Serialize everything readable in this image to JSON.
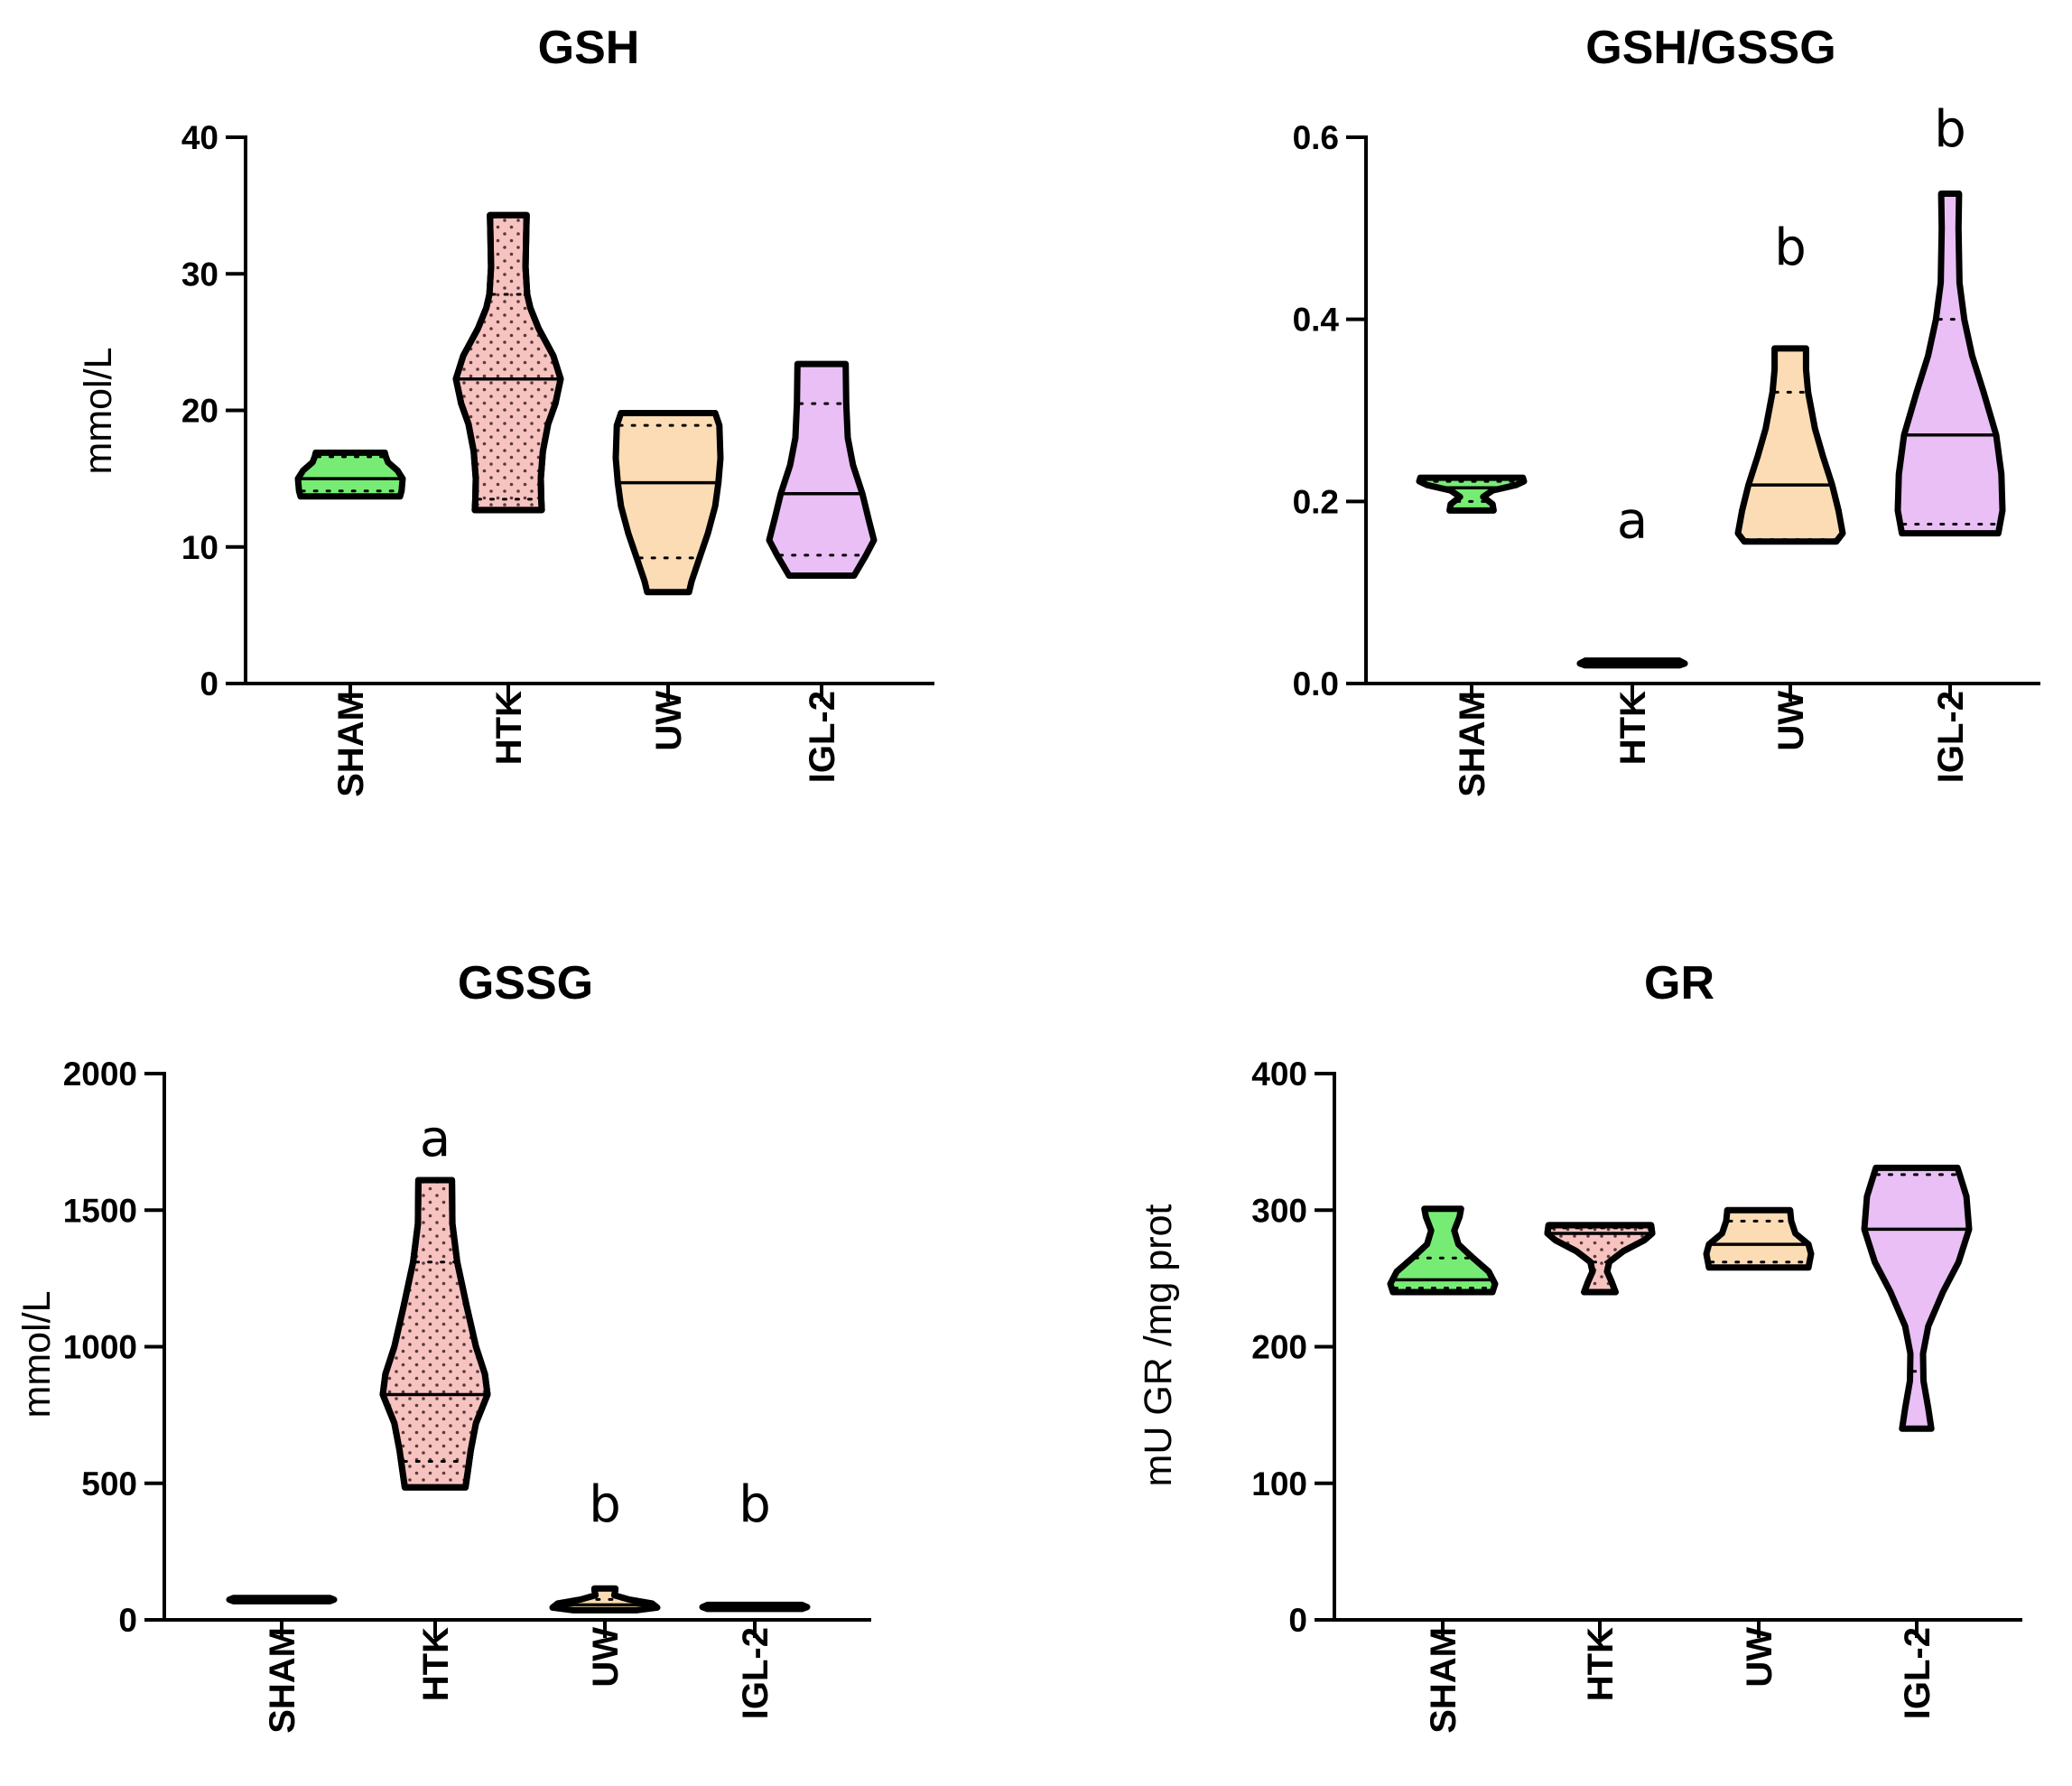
{
  "figure": {
    "colors": {
      "SHAM": "#77ec74",
      "HTK": "#f7c3c0",
      "UW": "#fbdcb4",
      "IGL-2": "#e9bff5"
    },
    "dot_pattern_groups": [
      "HTK"
    ]
  },
  "chart_data": [
    {
      "id": "gsh",
      "type": "violin",
      "title": "GSH",
      "ylabel": "mmol/L",
      "xlabel": "",
      "categories": [
        "SHAM",
        "HTK",
        "UW",
        "IGL-2"
      ],
      "ylim": [
        0,
        40
      ],
      "yticks": [
        0,
        10,
        20,
        30,
        40
      ],
      "grid": false,
      "legend": "none",
      "series": [
        {
          "name": "SHAM",
          "min": 13.7,
          "q1": 14.1,
          "median": 15.0,
          "q3": 16.6,
          "max": 16.9,
          "profile": [
            [
              13.7,
              0.95
            ],
            [
              14.1,
              0.98
            ],
            [
              15.0,
              1.0
            ],
            [
              15.6,
              0.9
            ],
            [
              16.2,
              0.72
            ],
            [
              16.6,
              0.68
            ],
            [
              16.9,
              0.66
            ]
          ]
        },
        {
          "name": "HTK",
          "min": 12.7,
          "q1": 13.5,
          "median": 22.3,
          "q3": 28.5,
          "max": 34.3,
          "profile": [
            [
              12.7,
              0.64
            ],
            [
              13.5,
              0.63
            ],
            [
              15.0,
              0.62
            ],
            [
              17.0,
              0.66
            ],
            [
              19.0,
              0.76
            ],
            [
              20.5,
              0.9
            ],
            [
              22.3,
              1.0
            ],
            [
              24.0,
              0.86
            ],
            [
              26.0,
              0.58
            ],
            [
              27.5,
              0.42
            ],
            [
              28.5,
              0.36
            ],
            [
              30.5,
              0.33
            ],
            [
              32.5,
              0.34
            ],
            [
              34.3,
              0.35
            ]
          ]
        },
        {
          "name": "UW",
          "min": 6.7,
          "q1": 9.2,
          "median": 14.7,
          "q3": 18.9,
          "max": 19.8,
          "profile": [
            [
              6.7,
              0.4
            ],
            [
              7.5,
              0.45
            ],
            [
              9.2,
              0.6
            ],
            [
              11.0,
              0.76
            ],
            [
              13.0,
              0.9
            ],
            [
              14.7,
              0.96
            ],
            [
              16.5,
              1.0
            ],
            [
              18.9,
              0.98
            ],
            [
              19.8,
              0.9
            ]
          ]
        },
        {
          "name": "IGL-2",
          "min": 7.9,
          "q1": 9.4,
          "median": 13.9,
          "q3": 20.5,
          "max": 23.4,
          "profile": [
            [
              7.9,
              0.62
            ],
            [
              9.4,
              0.85
            ],
            [
              10.5,
              1.0
            ],
            [
              12.0,
              0.9
            ],
            [
              13.9,
              0.78
            ],
            [
              16.0,
              0.6
            ],
            [
              18.0,
              0.5
            ],
            [
              20.5,
              0.47
            ],
            [
              23.4,
              0.46
            ]
          ]
        }
      ],
      "annotations": []
    },
    {
      "id": "ratio",
      "type": "violin",
      "title": "GSH/GSSG",
      "ylabel": "",
      "xlabel": "",
      "categories": [
        "SHAM",
        "HTK",
        "UW",
        "IGL-2"
      ],
      "ylim": [
        0,
        0.6
      ],
      "yticks": [
        0.0,
        0.2,
        0.4,
        0.6
      ],
      "ytick_labels": [
        "0.0",
        "0.2",
        "0.4",
        "0.6"
      ],
      "grid": false,
      "legend": "none",
      "series": [
        {
          "name": "SHAM",
          "min": 0.19,
          "q1": 0.2,
          "median": 0.215,
          "q3": 0.222,
          "max": 0.226,
          "profile": [
            [
              0.19,
              0.42
            ],
            [
              0.197,
              0.4
            ],
            [
              0.205,
              0.22
            ],
            [
              0.212,
              0.4
            ],
            [
              0.218,
              0.85
            ],
            [
              0.222,
              1.0
            ],
            [
              0.226,
              0.98
            ]
          ]
        },
        {
          "name": "HTK",
          "min": 0.02,
          "q1": 0.021,
          "median": 0.022,
          "q3": 0.023,
          "max": 0.025,
          "profile": [
            [
              0.02,
              0.9
            ],
            [
              0.022,
              1.0
            ],
            [
              0.025,
              0.9
            ]
          ]
        },
        {
          "name": "UW",
          "min": 0.156,
          "q1": 0.158,
          "median": 0.218,
          "q3": 0.32,
          "max": 0.368,
          "profile": [
            [
              0.156,
              0.88
            ],
            [
              0.165,
              1.0
            ],
            [
              0.19,
              0.92
            ],
            [
              0.218,
              0.8
            ],
            [
              0.25,
              0.62
            ],
            [
              0.28,
              0.47
            ],
            [
              0.32,
              0.34
            ],
            [
              0.345,
              0.3
            ],
            [
              0.368,
              0.3
            ]
          ]
        },
        {
          "name": "IGL-2",
          "min": 0.165,
          "q1": 0.175,
          "median": 0.273,
          "q3": 0.4,
          "max": 0.538,
          "profile": [
            [
              0.165,
              0.92
            ],
            [
              0.19,
              1.0
            ],
            [
              0.23,
              0.98
            ],
            [
              0.273,
              0.88
            ],
            [
              0.32,
              0.64
            ],
            [
              0.36,
              0.42
            ],
            [
              0.4,
              0.27
            ],
            [
              0.44,
              0.18
            ],
            [
              0.5,
              0.16
            ],
            [
              0.538,
              0.17
            ]
          ]
        }
      ],
      "annotations": [
        {
          "category": "HTK",
          "y": 0.16,
          "text": "a"
        },
        {
          "category": "UW",
          "y": 0.46,
          "text": "b"
        },
        {
          "category": "IGL-2",
          "y": 0.59,
          "text": "b"
        }
      ]
    },
    {
      "id": "gssg",
      "type": "violin",
      "title": "GSSG",
      "ylabel": "mmol/L",
      "xlabel": "",
      "categories": [
        "SHAM",
        "HTK",
        "UW",
        "IGL-2"
      ],
      "ylim": [
        0,
        2000
      ],
      "yticks": [
        0,
        500,
        1000,
        1500,
        2000
      ],
      "grid": false,
      "legend": "none",
      "series": [
        {
          "name": "SHAM",
          "min": 68,
          "q1": 70,
          "median": 74,
          "q3": 78,
          "max": 80,
          "profile": [
            [
              68,
              0.92
            ],
            [
              74,
              1.0
            ],
            [
              80,
              0.92
            ]
          ]
        },
        {
          "name": "HTK",
          "min": 485,
          "q1": 580,
          "median": 825,
          "q3": 1310,
          "max": 1610,
          "profile": [
            [
              485,
              0.58
            ],
            [
              540,
              0.62
            ],
            [
              620,
              0.68
            ],
            [
              720,
              0.78
            ],
            [
              825,
              1.0
            ],
            [
              900,
              0.95
            ],
            [
              1000,
              0.78
            ],
            [
              1150,
              0.6
            ],
            [
              1310,
              0.42
            ],
            [
              1450,
              0.33
            ],
            [
              1610,
              0.32
            ]
          ]
        },
        {
          "name": "UW",
          "min": 35,
          "q1": 40,
          "median": 55,
          "q3": 75,
          "max": 115,
          "profile": [
            [
              35,
              0.6
            ],
            [
              45,
              1.0
            ],
            [
              60,
              0.9
            ],
            [
              75,
              0.45
            ],
            [
              90,
              0.18
            ],
            [
              108,
              0.2
            ],
            [
              115,
              0.2
            ]
          ]
        },
        {
          "name": "IGL-2",
          "min": 40,
          "q1": 42,
          "median": 47,
          "q3": 52,
          "max": 55,
          "profile": [
            [
              40,
              0.9
            ],
            [
              47,
              1.0
            ],
            [
              55,
              0.9
            ]
          ]
        }
      ],
      "annotations": [
        {
          "category": "HTK",
          "y": 1700,
          "text": "a"
        },
        {
          "category": "UW",
          "y": 360,
          "text": "b"
        },
        {
          "category": "IGL-2",
          "y": 360,
          "text": "b"
        }
      ]
    },
    {
      "id": "gr",
      "type": "violin",
      "title": "GR",
      "ylabel": "mU GR /mg prot",
      "xlabel": "",
      "categories": [
        "SHAM",
        "HTK",
        "UW",
        "IGL-2"
      ],
      "ylim": [
        0,
        400
      ],
      "yticks": [
        0,
        100,
        200,
        300,
        400
      ],
      "grid": false,
      "legend": "none",
      "series": [
        {
          "name": "SHAM",
          "min": 240,
          "q1": 243,
          "median": 249,
          "q3": 265,
          "max": 301,
          "profile": [
            [
              240,
              0.95
            ],
            [
              246,
              1.0
            ],
            [
              255,
              0.88
            ],
            [
              265,
              0.58
            ],
            [
              275,
              0.3
            ],
            [
              285,
              0.22
            ],
            [
              295,
              0.32
            ],
            [
              301,
              0.35
            ]
          ]
        },
        {
          "name": "HTK",
          "min": 240,
          "q1": 262,
          "median": 283,
          "q3": 287,
          "max": 289,
          "profile": [
            [
              240,
              0.3
            ],
            [
              248,
              0.22
            ],
            [
              255,
              0.14
            ],
            [
              262,
              0.18
            ],
            [
              270,
              0.45
            ],
            [
              278,
              0.85
            ],
            [
              283,
              1.0
            ],
            [
              289,
              0.98
            ]
          ]
        },
        {
          "name": "UW",
          "min": 258,
          "q1": 262,
          "median": 275,
          "q3": 292,
          "max": 300,
          "profile": [
            [
              258,
              0.95
            ],
            [
              268,
              1.0
            ],
            [
              275,
              0.95
            ],
            [
              283,
              0.7
            ],
            [
              292,
              0.62
            ],
            [
              300,
              0.6
            ]
          ]
        },
        {
          "name": "IGL-2",
          "min": 140,
          "q1": 182,
          "median": 286,
          "q3": 326,
          "max": 331,
          "profile": [
            [
              140,
              0.28
            ],
            [
              155,
              0.22
            ],
            [
              175,
              0.13
            ],
            [
              195,
              0.12
            ],
            [
              215,
              0.22
            ],
            [
              240,
              0.5
            ],
            [
              262,
              0.8
            ],
            [
              286,
              1.0
            ],
            [
              310,
              0.95
            ],
            [
              326,
              0.82
            ],
            [
              331,
              0.78
            ]
          ]
        }
      ],
      "annotations": []
    }
  ]
}
